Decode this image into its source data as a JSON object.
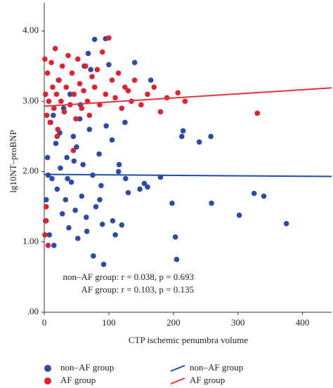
{
  "chart_data": {
    "type": "scatter",
    "xlabel": "CTP ischemic penumbra volume",
    "ylabel": "lg10NT–proBNP",
    "xlim": [
      0,
      445
    ],
    "xticks": [
      0,
      100,
      200,
      300,
      400
    ],
    "ylim": [
      0,
      4.4
    ],
    "yticks": [
      {
        "value": 0,
        "label": ".00"
      },
      {
        "value": 1,
        "label": "1.00"
      },
      {
        "value": 2,
        "label": "2.00"
      },
      {
        "value": 3,
        "label": "3.00"
      },
      {
        "value": 4,
        "label": "4.00"
      }
    ],
    "annotations": [
      "non–AF group: r = 0.038, p = 0.693",
      "AF group: r = 0.103, p = 0.135"
    ],
    "series": [
      {
        "name": "non–AF group",
        "color": "#2b4ba6",
        "x": [
          3,
          5,
          8,
          10,
          12,
          15,
          18,
          20,
          22,
          25,
          28,
          30,
          33,
          35,
          38,
          40,
          42,
          45,
          48,
          50,
          52,
          55,
          58,
          60,
          62,
          65,
          68,
          70,
          72,
          75,
          78,
          80,
          85,
          88,
          90,
          92,
          95,
          100,
          105,
          110,
          115,
          120,
          125,
          130,
          140,
          148,
          155,
          160,
          165,
          180,
          198,
          203,
          205,
          213,
          215,
          240,
          258,
          259,
          302,
          325,
          340,
          375,
          2,
          6,
          14,
          24,
          36,
          46,
          56,
          66,
          76,
          86,
          96,
          106,
          116,
          126
        ],
        "values": [
          1.6,
          2.2,
          1.1,
          2.7,
          1.9,
          0.95,
          2.4,
          1.75,
          3.3,
          2.05,
          1.4,
          2.9,
          1.6,
          2.2,
          1.2,
          3.1,
          1.85,
          2.5,
          1.45,
          2.35,
          1.05,
          2.75,
          1.65,
          2.1,
          3.5,
          1.35,
          3.68,
          2.6,
          3.45,
          1.95,
          3.88,
          1.5,
          2.25,
          1.8,
          1.25,
          0.68,
          3.89,
          3.52,
          2.45,
          1.1,
          2.0,
          1.24,
          2.7,
          1.7,
          3.55,
          1.75,
          1.83,
          1.78,
          3.3,
          1.92,
          1.55,
          1.07,
          0.75,
          2.5,
          2.58,
          2.42,
          2.5,
          1.55,
          1.38,
          1.69,
          1.65,
          1.26,
          1.3,
          1.95,
          2.8,
          2.55,
          1.9,
          2.15,
          2.95,
          1.15,
          0.8,
          1.6,
          2.65,
          1.3,
          2.1,
          1.9
        ]
      },
      {
        "name": "AF group",
        "color": "#e3202d",
        "x": [
          1,
          2,
          4,
          5,
          7,
          9,
          11,
          13,
          15,
          17,
          19,
          21,
          23,
          26,
          28,
          31,
          34,
          37,
          40,
          43,
          46,
          49,
          52,
          55,
          58,
          61,
          64,
          67,
          70,
          74,
          78,
          82,
          86,
          90,
          95,
          100,
          105,
          110,
          115,
          120,
          125,
          130,
          135,
          140,
          150,
          160,
          170,
          180,
          190,
          207,
          218,
          330,
          1,
          3,
          3,
          6,
          20,
          45
        ],
        "values": [
          3.6,
          3.1,
          2.8,
          3.4,
          3.0,
          2.7,
          3.55,
          3.2,
          2.9,
          3.75,
          3.1,
          2.6,
          3.3,
          3.0,
          3.5,
          2.85,
          3.2,
          3.65,
          2.95,
          3.4,
          3.1,
          2.75,
          3.6,
          3.25,
          2.9,
          3.15,
          3.5,
          3.0,
          2.8,
          3.35,
          3.2,
          3.45,
          2.95,
          3.7,
          3.1,
          3.9,
          3.3,
          3.05,
          3.4,
          2.9,
          3.2,
          3.15,
          3.0,
          3.3,
          2.95,
          3.1,
          3.2,
          2.85,
          3.05,
          3.12,
          3.0,
          2.83,
          1.1,
          1.3,
          1.5,
          0.95,
          2.5,
          2.3
        ]
      }
    ],
    "lines": [
      {
        "name": "non–AF group",
        "color": "#1f4ea8",
        "x": [
          0,
          445
        ],
        "values": [
          1.96,
          1.93
        ]
      },
      {
        "name": "AF group",
        "color": "#e8333d",
        "x": [
          0,
          445
        ],
        "values": [
          2.93,
          3.19
        ]
      }
    ]
  }
}
